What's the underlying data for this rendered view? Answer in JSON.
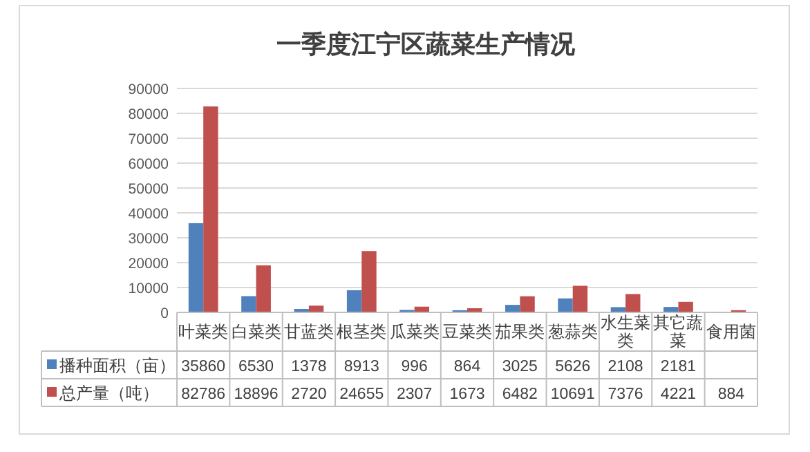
{
  "chart_data": {
    "type": "bar",
    "title": "一季度江宁区蔬菜生产情况",
    "categories": [
      "叶菜类",
      "白菜类",
      "甘蓝类",
      "根茎类",
      "瓜菜类",
      "豆菜类",
      "茄果类",
      "葱蒜类",
      "水生菜类",
      "其它蔬菜",
      "食用菌"
    ],
    "series": [
      {
        "name": "播种面积（亩）",
        "color": "#4f81bd",
        "values": [
          35860,
          6530,
          1378,
          8913,
          996,
          864,
          3025,
          5626,
          2108,
          2181,
          null
        ]
      },
      {
        "name": "总产量（吨）",
        "color": "#c0504d",
        "values": [
          82786,
          18896,
          2720,
          24655,
          2307,
          1673,
          6482,
          10691,
          7376,
          4221,
          884
        ]
      }
    ],
    "ylim": [
      0,
      90000
    ],
    "yticks": [
      0,
      10000,
      20000,
      30000,
      40000,
      50000,
      60000,
      70000,
      80000,
      90000
    ],
    "grid": "y",
    "legend": "bottom",
    "data_labels": true
  }
}
